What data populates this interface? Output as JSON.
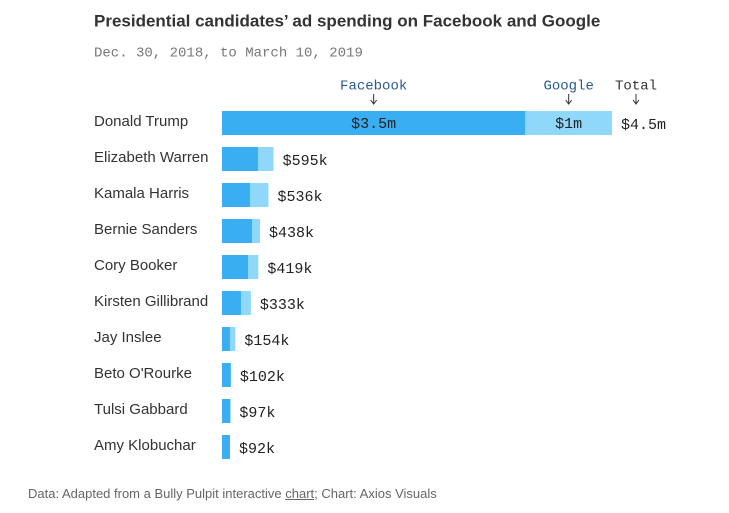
{
  "chart_data": {
    "type": "stacked-hbar",
    "title": "Presidential candidates’ ad spending on Facebook and Google",
    "subtitle": "Dec. 30, 2018, to March 10, 2019",
    "categories": [
      "Donald Trump",
      "Elizabeth Warren",
      "Kamala Harris",
      "Bernie Sanders",
      "Cory Booker",
      "Kirsten Gillibrand",
      "Jay Inslee",
      "Beto O'Rourke",
      "Tulsi Gabbard",
      "Amy Klobuchar"
    ],
    "series": [
      {
        "name": "Facebook",
        "color": "#3aaef2",
        "values": [
          3500000,
          415000,
          323000,
          346000,
          300000,
          219000,
          92000,
          102000,
          97000,
          92000
        ],
        "value_labels": [
          "$3.5m",
          null,
          null,
          null,
          null,
          null,
          null,
          null,
          null,
          null
        ]
      },
      {
        "name": "Google",
        "color": "#8fd8fb",
        "values": [
          1000000,
          180000,
          213000,
          92000,
          119000,
          114000,
          62000,
          0,
          0,
          0
        ],
        "value_labels": [
          "$1m",
          null,
          null,
          null,
          null,
          null,
          null,
          null,
          null,
          null
        ]
      }
    ],
    "total_name": "Total",
    "totals": {
      "values": [
        4500000,
        595000,
        536000,
        438000,
        419000,
        333000,
        154000,
        102000,
        97000,
        92000
      ],
      "value_labels": [
        "$4.5m",
        "$595k",
        "$536k",
        "$438k",
        "$419k",
        "$333k",
        "$154k",
        "$102k",
        "$97k",
        "$92k"
      ]
    },
    "source": {
      "prefix": "Data: Adapted from a Bully Pulpit interactive ",
      "link": "chart",
      "suffix": "; Chart: Axios Visuals"
    }
  }
}
